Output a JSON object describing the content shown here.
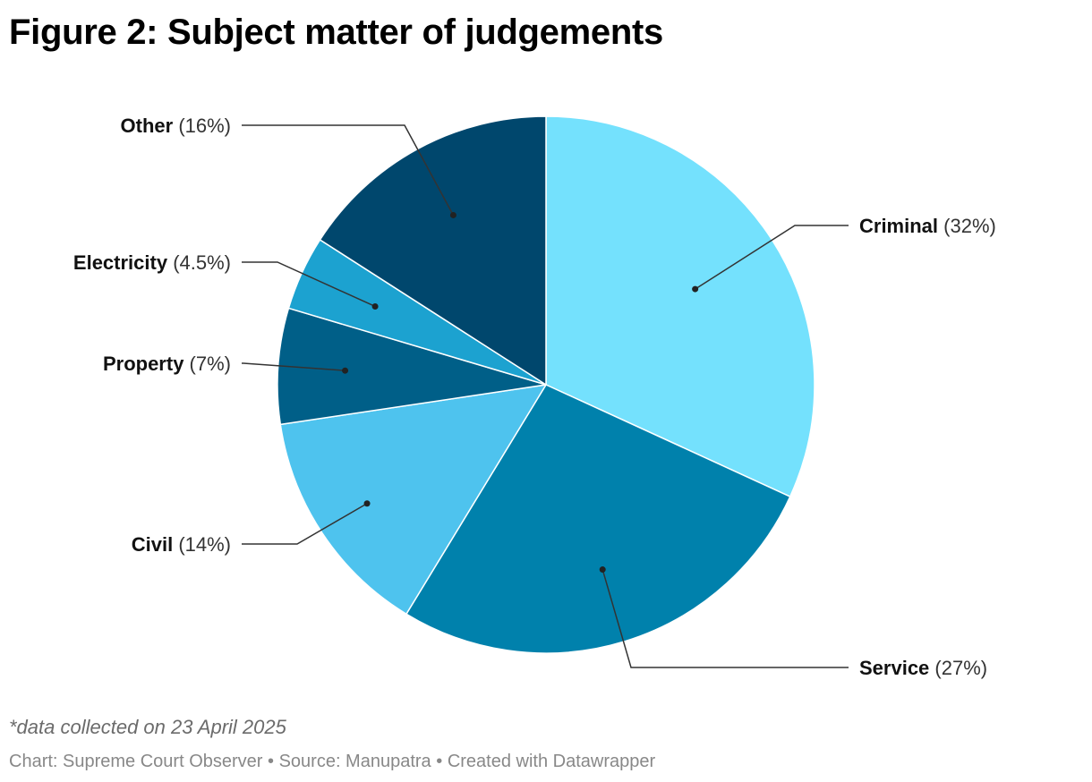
{
  "title": "Figure 2: Subject matter of judgements",
  "note": "*data collected on 23 April 2025",
  "footer": {
    "chart_credit": "Chart: Supreme Court Observer",
    "source": "Source: Manupatra",
    "created_with": "Created with Datawrapper",
    "separator": "•"
  },
  "chart_data": {
    "type": "pie",
    "start_angle_deg": 0,
    "direction": "clockwise",
    "slices": [
      {
        "label": "Criminal",
        "value": 32,
        "display": "(32%)",
        "color": "#74e1fd"
      },
      {
        "label": "Service",
        "value": 27,
        "display": "(27%)",
        "color": "#0081ac"
      },
      {
        "label": "Civil",
        "value": 14,
        "display": "(14%)",
        "color": "#4ec3ee"
      },
      {
        "label": "Property",
        "value": 7,
        "display": "(7%)",
        "color": "#005f88"
      },
      {
        "label": "Electricity",
        "value": 4.5,
        "display": "(4.5%)",
        "color": "#1ca2d0"
      },
      {
        "label": "Other",
        "value": 16,
        "display": "(16%)",
        "color": "#00476d"
      }
    ]
  }
}
